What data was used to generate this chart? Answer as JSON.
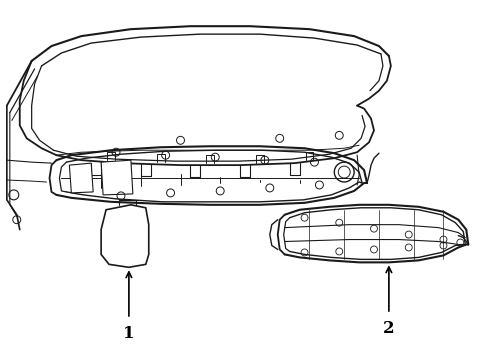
{
  "bg_color": "#ffffff",
  "line_color": "#1a1a1a",
  "label_color": "#000000",
  "label1": "1",
  "label2": "2",
  "figsize": [
    4.9,
    3.6
  ],
  "dpi": 100
}
